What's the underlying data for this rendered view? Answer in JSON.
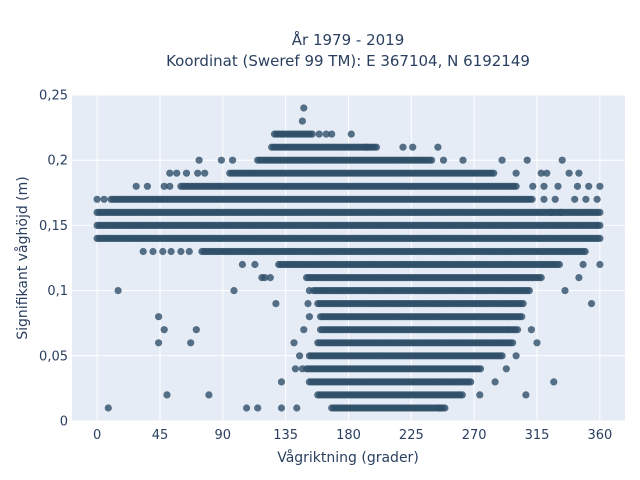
{
  "chart_data": {
    "type": "scatter",
    "title_lines": [
      "År 1979 - 2019",
      "Koordinat (Sweref 99 TM): E 367104, N 6192149"
    ],
    "xlabel": "Vågriktning (grader)",
    "ylabel": "Signifikant våghöjd (m)",
    "xlim": [
      -18,
      378
    ],
    "ylim": [
      0,
      0.25
    ],
    "x_ticks": [
      0,
      45,
      90,
      135,
      180,
      225,
      270,
      315,
      360
    ],
    "x_tick_labels": [
      "0",
      "45",
      "90",
      "135",
      "180",
      "225",
      "270",
      "315",
      "360"
    ],
    "y_ticks": [
      0,
      0.05,
      0.1,
      0.15,
      0.2,
      0.25
    ],
    "y_tick_labels": [
      "0",
      "0,05",
      "0,1",
      "0,15",
      "0,2",
      "0,25"
    ],
    "grid": true,
    "marker_color": "#2f4f69",
    "background_color": "#e5ecf6",
    "bands": [
      {
        "y": 0.01,
        "x_start": 168,
        "x_end": 250
      },
      {
        "y": 0.02,
        "x_start": 158,
        "x_end": 262
      },
      {
        "y": 0.03,
        "x_start": 152,
        "x_end": 268
      },
      {
        "y": 0.04,
        "x_start": 150,
        "x_end": 275
      },
      {
        "y": 0.05,
        "x_start": 152,
        "x_end": 290
      },
      {
        "y": 0.06,
        "x_start": 158,
        "x_end": 298
      },
      {
        "y": 0.07,
        "x_start": 160,
        "x_end": 302
      },
      {
        "y": 0.08,
        "x_start": 160,
        "x_end": 305
      },
      {
        "y": 0.09,
        "x_start": 158,
        "x_end": 305
      },
      {
        "y": 0.1,
        "x_start": 155,
        "x_end": 310
      },
      {
        "y": 0.11,
        "x_start": 150,
        "x_end": 318
      },
      {
        "y": 0.12,
        "x_start": 130,
        "x_end": 332
      },
      {
        "y": 0.13,
        "x_start": 75,
        "x_end": 350
      },
      {
        "y": 0.14,
        "x_start": 0,
        "x_end": 360
      },
      {
        "y": 0.15,
        "x_start": 0,
        "x_end": 360
      },
      {
        "y": 0.16,
        "x_start": 0,
        "x_end": 360
      },
      {
        "y": 0.17,
        "x_start": 10,
        "x_end": 312
      },
      {
        "y": 0.18,
        "x_start": 60,
        "x_end": 300
      },
      {
        "y": 0.19,
        "x_start": 95,
        "x_end": 285
      },
      {
        "y": 0.2,
        "x_start": 115,
        "x_end": 240
      },
      {
        "y": 0.21,
        "x_start": 125,
        "x_end": 200
      },
      {
        "y": 0.22,
        "x_start": 127,
        "x_end": 155
      }
    ],
    "points": [
      {
        "x": 8,
        "y": 0.01
      },
      {
        "x": 107,
        "y": 0.01
      },
      {
        "x": 115,
        "y": 0.01
      },
      {
        "x": 132,
        "y": 0.01
      },
      {
        "x": 143,
        "y": 0.01
      },
      {
        "x": 245,
        "y": 0.01
      },
      {
        "x": 50,
        "y": 0.02
      },
      {
        "x": 80,
        "y": 0.02
      },
      {
        "x": 274,
        "y": 0.02
      },
      {
        "x": 307,
        "y": 0.02
      },
      {
        "x": 132,
        "y": 0.03
      },
      {
        "x": 327,
        "y": 0.03
      },
      {
        "x": 142,
        "y": 0.04
      },
      {
        "x": 147,
        "y": 0.04
      },
      {
        "x": 285,
        "y": 0.03
      },
      {
        "x": 293,
        "y": 0.04
      },
      {
        "x": 145,
        "y": 0.05
      },
      {
        "x": 300,
        "y": 0.05
      },
      {
        "x": 44,
        "y": 0.06
      },
      {
        "x": 67,
        "y": 0.06
      },
      {
        "x": 141,
        "y": 0.06
      },
      {
        "x": 315,
        "y": 0.06
      },
      {
        "x": 48,
        "y": 0.07
      },
      {
        "x": 71,
        "y": 0.07
      },
      {
        "x": 148,
        "y": 0.07
      },
      {
        "x": 311,
        "y": 0.07
      },
      {
        "x": 44,
        "y": 0.08
      },
      {
        "x": 152,
        "y": 0.08
      },
      {
        "x": 128,
        "y": 0.09
      },
      {
        "x": 151,
        "y": 0.09
      },
      {
        "x": 354,
        "y": 0.09
      },
      {
        "x": 15,
        "y": 0.1
      },
      {
        "x": 98,
        "y": 0.1
      },
      {
        "x": 152,
        "y": 0.1
      },
      {
        "x": 335,
        "y": 0.1
      },
      {
        "x": 118,
        "y": 0.11
      },
      {
        "x": 124,
        "y": 0.11
      },
      {
        "x": 120,
        "y": 0.11
      },
      {
        "x": 345,
        "y": 0.11
      },
      {
        "x": 104,
        "y": 0.12
      },
      {
        "x": 113,
        "y": 0.12
      },
      {
        "x": 348,
        "y": 0.12
      },
      {
        "x": 360,
        "y": 0.12
      },
      {
        "x": 33,
        "y": 0.13
      },
      {
        "x": 40,
        "y": 0.13
      },
      {
        "x": 47,
        "y": 0.13
      },
      {
        "x": 53,
        "y": 0.13
      },
      {
        "x": 60,
        "y": 0.13
      },
      {
        "x": 66,
        "y": 0.13
      },
      {
        "x": 0,
        "y": 0.17
      },
      {
        "x": 5,
        "y": 0.17
      },
      {
        "x": 320,
        "y": 0.17
      },
      {
        "x": 328,
        "y": 0.17
      },
      {
        "x": 342,
        "y": 0.17
      },
      {
        "x": 350,
        "y": 0.17
      },
      {
        "x": 358,
        "y": 0.17
      },
      {
        "x": 28,
        "y": 0.18
      },
      {
        "x": 48,
        "y": 0.18
      },
      {
        "x": 52,
        "y": 0.18
      },
      {
        "x": 312,
        "y": 0.18
      },
      {
        "x": 320,
        "y": 0.18
      },
      {
        "x": 330,
        "y": 0.18
      },
      {
        "x": 344,
        "y": 0.18
      },
      {
        "x": 352,
        "y": 0.18
      },
      {
        "x": 360,
        "y": 0.18
      },
      {
        "x": 36,
        "y": 0.18
      },
      {
        "x": 325,
        "y": 0.16
      },
      {
        "x": 332,
        "y": 0.16
      },
      {
        "x": 52,
        "y": 0.19
      },
      {
        "x": 57,
        "y": 0.19
      },
      {
        "x": 64,
        "y": 0.19
      },
      {
        "x": 72,
        "y": 0.19
      },
      {
        "x": 77,
        "y": 0.19
      },
      {
        "x": 300,
        "y": 0.19
      },
      {
        "x": 318,
        "y": 0.19
      },
      {
        "x": 322,
        "y": 0.19
      },
      {
        "x": 338,
        "y": 0.19
      },
      {
        "x": 345,
        "y": 0.19
      },
      {
        "x": 73,
        "y": 0.2
      },
      {
        "x": 89,
        "y": 0.2
      },
      {
        "x": 97,
        "y": 0.2
      },
      {
        "x": 248,
        "y": 0.2
      },
      {
        "x": 262,
        "y": 0.2
      },
      {
        "x": 290,
        "y": 0.2
      },
      {
        "x": 308,
        "y": 0.2
      },
      {
        "x": 333,
        "y": 0.2
      },
      {
        "x": 193,
        "y": 0.21
      },
      {
        "x": 219,
        "y": 0.21
      },
      {
        "x": 226,
        "y": 0.21
      },
      {
        "x": 244,
        "y": 0.21
      },
      {
        "x": 159,
        "y": 0.22
      },
      {
        "x": 164,
        "y": 0.22
      },
      {
        "x": 168,
        "y": 0.22
      },
      {
        "x": 182,
        "y": 0.22
      },
      {
        "x": 147,
        "y": 0.23
      },
      {
        "x": 148,
        "y": 0.24
      }
    ]
  }
}
